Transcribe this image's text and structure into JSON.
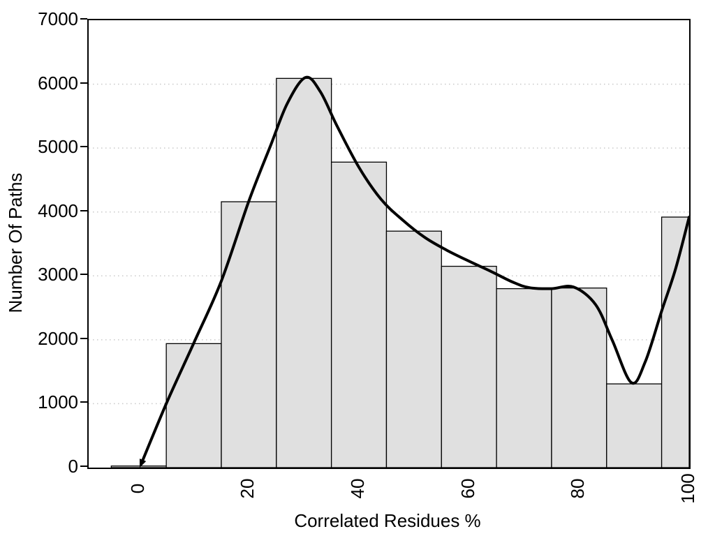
{
  "chart_data": {
    "type": "histogram",
    "title": "",
    "xlabel": "Correlated Residues %",
    "ylabel": "Number Of Paths",
    "xlim": [
      -9.1,
      100
    ],
    "ylim": [
      0,
      7000
    ],
    "grid": {
      "on": true,
      "style": "dotted",
      "color": "#c9c9c9",
      "lines": [
        1000,
        2000,
        3000,
        4000,
        5000,
        6000
      ]
    },
    "x_ticks": [
      0,
      20,
      40,
      60,
      80,
      100
    ],
    "x_tick_labels": [
      "0",
      "20",
      "40",
      "60",
      "80",
      "100"
    ],
    "x_tick_rotation_deg": -90,
    "y_ticks": [
      0,
      1000,
      2000,
      3000,
      4000,
      5000,
      6000,
      7000
    ],
    "y_tick_labels": [
      "0",
      "1000",
      "2000",
      "3000",
      "4000",
      "5000",
      "6000",
      "7000"
    ],
    "bin_width": 10,
    "bin_centers": [
      0,
      10,
      20,
      30,
      40,
      50,
      60,
      70,
      80,
      90,
      100
    ],
    "values": [
      25,
      1940,
      4160,
      6090,
      4780,
      3700,
      3150,
      2800,
      2810,
      1310,
      3920
    ],
    "bar_fill": "#e0e0e0",
    "bar_stroke": "#000000",
    "curve": {
      "name": "density-curve",
      "color": "#000000",
      "width": 4,
      "arrow_start": true,
      "points": [
        [
          0.5,
          70
        ],
        [
          5,
          1000
        ],
        [
          10,
          1950
        ],
        [
          15,
          2920
        ],
        [
          20,
          4170
        ],
        [
          24,
          5050
        ],
        [
          27,
          5700
        ],
        [
          30.3,
          6105
        ],
        [
          33,
          5880
        ],
        [
          36,
          5350
        ],
        [
          40,
          4700
        ],
        [
          44,
          4200
        ],
        [
          48,
          3870
        ],
        [
          52,
          3600
        ],
        [
          56,
          3400
        ],
        [
          60,
          3230
        ],
        [
          64,
          3070
        ],
        [
          68,
          2900
        ],
        [
          71,
          2815
        ],
        [
          75,
          2800
        ],
        [
          79,
          2825
        ],
        [
          83,
          2550
        ],
        [
          86,
          2000
        ],
        [
          89.5,
          1330
        ],
        [
          92,
          1650
        ],
        [
          95,
          2450
        ],
        [
          97.5,
          3100
        ],
        [
          100,
          3920
        ]
      ]
    }
  }
}
